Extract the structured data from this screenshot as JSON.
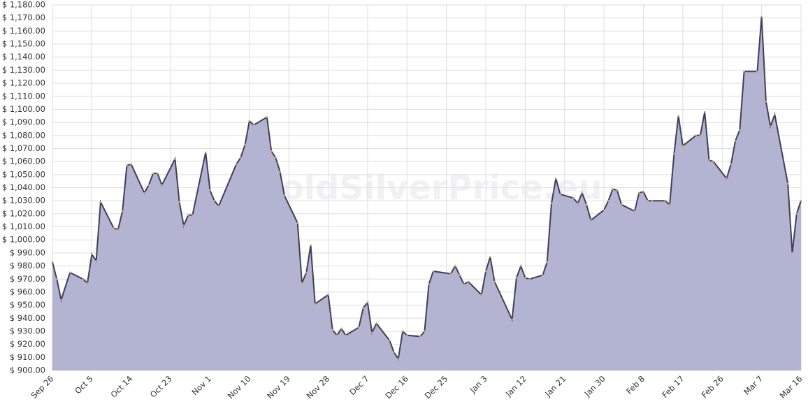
{
  "chart_data": {
    "type": "area",
    "watermark": "GoldSilverPrice.eu",
    "x": [
      0,
      1,
      2,
      4,
      7,
      8,
      9,
      10,
      11,
      14,
      15,
      16,
      17,
      18,
      21,
      22,
      23,
      24,
      25,
      28,
      29,
      30,
      31,
      32,
      35,
      36,
      37,
      38,
      42,
      43,
      44,
      45,
      46,
      49,
      50,
      51,
      52,
      53,
      56,
      57,
      58,
      59,
      60,
      63,
      64,
      65,
      66,
      67,
      70,
      71,
      72,
      73,
      74,
      77,
      78,
      79,
      80,
      81,
      84,
      85,
      86,
      87,
      91,
      92,
      93,
      94,
      95,
      98,
      99,
      100,
      101,
      105,
      106,
      107,
      108,
      109,
      112,
      113,
      114,
      115,
      116,
      119,
      120,
      121,
      122,
      123,
      126,
      127,
      128,
      129,
      130,
      133,
      134,
      135,
      136,
      137,
      140,
      141,
      142,
      143,
      144,
      147,
      148,
      149,
      150,
      151,
      154,
      155,
      156,
      157,
      158,
      161,
      162,
      163,
      164,
      165,
      168,
      169,
      170,
      171
    ],
    "values": [
      983,
      970,
      954,
      975,
      970,
      967,
      989,
      984,
      1029,
      1009,
      1008,
      1022,
      1057,
      1058,
      1036,
      1042,
      1051,
      1051,
      1042,
      1062,
      1029,
      1011,
      1019,
      1019,
      1067,
      1038,
      1030,
      1026,
      1058,
      1063,
      1073,
      1091,
      1088,
      1094,
      1068,
      1063,
      1052,
      1034,
      1013,
      967,
      975,
      996,
      951,
      958,
      931,
      927,
      932,
      927,
      933,
      948,
      952,
      929,
      936,
      923,
      914,
      909,
      930,
      927,
      926,
      930,
      966,
      976,
      974,
      980,
      973,
      966,
      968,
      958,
      976,
      987,
      968,
      939,
      971,
      980,
      971,
      970,
      973,
      983,
      1028,
      1047,
      1035,
      1032,
      1028,
      1036,
      1027,
      1015,
      1023,
      1030,
      1039,
      1038,
      1027,
      1022,
      1036,
      1037,
      1030,
      1030,
      1030,
      1027,
      1066,
      1095,
      1072,
      1080,
      1080,
      1098,
      1061,
      1060,
      1047,
      1058,
      1076,
      1084,
      1129,
      1129,
      1171,
      1106,
      1087,
      1096,
      1043,
      990,
      1020,
      1030
    ],
    "color": "#b3b3d2",
    "line_color": "#3f3f5c",
    "point_color": "#e0a050",
    "xlim": [
      0,
      171
    ],
    "xticks": [
      {
        "value": 0,
        "label": "Sep 26"
      },
      {
        "value": 9,
        "label": "Oct 5"
      },
      {
        "value": 18,
        "label": "Oct 14"
      },
      {
        "value": 27,
        "label": "Oct 23"
      },
      {
        "value": 36,
        "label": "Nov 1"
      },
      {
        "value": 45,
        "label": "Nov 10"
      },
      {
        "value": 54,
        "label": "Nov 19"
      },
      {
        "value": 63,
        "label": "Nov 28"
      },
      {
        "value": 72,
        "label": "Dec 7"
      },
      {
        "value": 81,
        "label": "Dec 16"
      },
      {
        "value": 90,
        "label": "Dec 25"
      },
      {
        "value": 99,
        "label": "Jan 3"
      },
      {
        "value": 108,
        "label": "Jan 12"
      },
      {
        "value": 117,
        "label": "Jan 21"
      },
      {
        "value": 126,
        "label": "Jan 30"
      },
      {
        "value": 135,
        "label": "Feb 8"
      },
      {
        "value": 144,
        "label": "Feb 17"
      },
      {
        "value": 153,
        "label": "Feb 26"
      },
      {
        "value": 162,
        "label": "Mar 7"
      },
      {
        "value": 171,
        "label": "Mar 16"
      }
    ],
    "ylim": [
      900,
      1180
    ],
    "yticks": [
      {
        "value": 900,
        "label": "$ 900.00"
      },
      {
        "value": 910,
        "label": "$ 910.00"
      },
      {
        "value": 920,
        "label": "$ 920.00"
      },
      {
        "value": 930,
        "label": "$ 930.00"
      },
      {
        "value": 940,
        "label": "$ 940.00"
      },
      {
        "value": 950,
        "label": "$ 950.00"
      },
      {
        "value": 960,
        "label": "$ 960.00"
      },
      {
        "value": 970,
        "label": "$ 970.00"
      },
      {
        "value": 980,
        "label": "$ 980.00"
      },
      {
        "value": 990,
        "label": "$ 990.00"
      },
      {
        "value": 1000,
        "label": "$ 1,000.00"
      },
      {
        "value": 1010,
        "label": "$ 1,010.00"
      },
      {
        "value": 1020,
        "label": "$ 1,020.00"
      },
      {
        "value": 1030,
        "label": "$ 1,030.00"
      },
      {
        "value": 1040,
        "label": "$ 1,040.00"
      },
      {
        "value": 1050,
        "label": "$ 1,050.00"
      },
      {
        "value": 1060,
        "label": "$ 1,060.00"
      },
      {
        "value": 1070,
        "label": "$ 1,070.00"
      },
      {
        "value": 1080,
        "label": "$ 1,080.00"
      },
      {
        "value": 1090,
        "label": "$ 1,090.00"
      },
      {
        "value": 1100,
        "label": "$ 1,100.00"
      },
      {
        "value": 1110,
        "label": "$ 1,110.00"
      },
      {
        "value": 1120,
        "label": "$ 1,120.00"
      },
      {
        "value": 1130,
        "label": "$ 1,130.00"
      },
      {
        "value": 1140,
        "label": "$ 1,140.00"
      },
      {
        "value": 1150,
        "label": "$ 1,150.00"
      },
      {
        "value": 1160,
        "label": "$ 1,160.00"
      },
      {
        "value": 1170,
        "label": "$ 1,170.00"
      },
      {
        "value": 1180,
        "label": "$ 1,180.00"
      }
    ],
    "grid": true
  }
}
